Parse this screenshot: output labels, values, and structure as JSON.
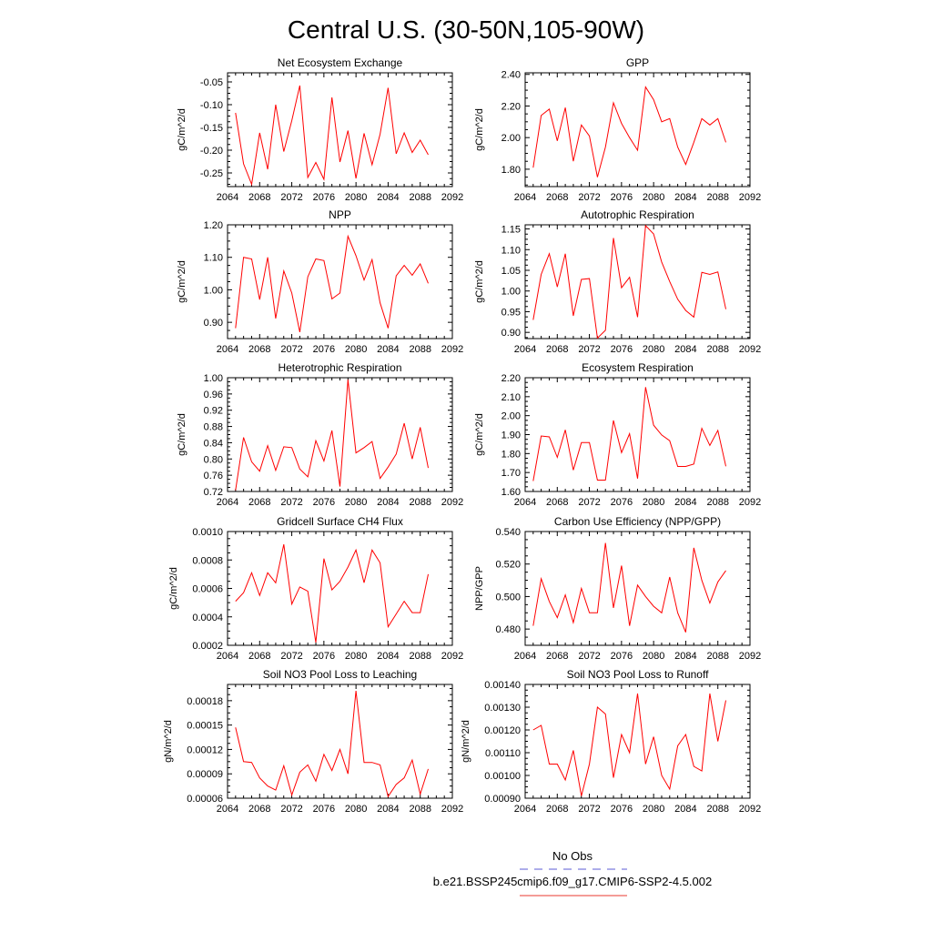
{
  "page_title": "Central U.S. (30-50N,105-90W)",
  "legend": {
    "entries": [
      {
        "label": "No Obs",
        "color": "#5b5bd6",
        "style": "dashed"
      },
      {
        "label": "b.e21.BSSP245cmip6.f09_g17.CMIP6-SSP2-4.5.002",
        "color": "#e8392f",
        "style": "solid"
      }
    ]
  },
  "chart_data": [
    {
      "type": "line",
      "title": "Net Ecosystem Exchange",
      "ylabel": "gC/m^2/d",
      "xlabel": "",
      "xlim": [
        2064,
        2092
      ],
      "xticks": [
        2064,
        2068,
        2072,
        2076,
        2080,
        2084,
        2088,
        2092
      ],
      "ylim": [
        -0.28,
        -0.03
      ],
      "yticks": [
        -0.25,
        -0.2,
        -0.15,
        -0.1,
        -0.05
      ],
      "ytick_labels": [
        "-0.25",
        "-0.20",
        "-0.15",
        "-0.10",
        "-0.05"
      ],
      "series": [
        {
          "color": "#ff0000",
          "x": [
            2065,
            2066,
            2067,
            2068,
            2069,
            2070,
            2071,
            2072,
            2073,
            2074,
            2075,
            2076,
            2077,
            2078,
            2079,
            2080,
            2081,
            2082,
            2083,
            2084,
            2085,
            2086,
            2087,
            2088,
            2089
          ],
          "values": [
            -0.118,
            -0.23,
            -0.275,
            -0.162,
            -0.242,
            -0.1,
            -0.203,
            -0.135,
            -0.058,
            -0.26,
            -0.227,
            -0.264,
            -0.084,
            -0.226,
            -0.157,
            -0.262,
            -0.163,
            -0.232,
            -0.165,
            -0.063,
            -0.208,
            -0.162,
            -0.205,
            -0.178,
            -0.21
          ]
        }
      ]
    },
    {
      "type": "line",
      "title": "GPP",
      "ylabel": "gC/m^2/d",
      "xlabel": "",
      "xlim": [
        2064,
        2092
      ],
      "xticks": [
        2064,
        2068,
        2072,
        2076,
        2080,
        2084,
        2088,
        2092
      ],
      "ylim": [
        1.69,
        2.41
      ],
      "yticks": [
        1.8,
        2.0,
        2.2,
        2.4
      ],
      "ytick_labels": [
        "1.80",
        "2.00",
        "2.20",
        "2.40"
      ],
      "series": [
        {
          "color": "#ff0000",
          "x": [
            2065,
            2066,
            2067,
            2068,
            2069,
            2070,
            2071,
            2072,
            2073,
            2074,
            2075,
            2076,
            2077,
            2078,
            2079,
            2080,
            2081,
            2082,
            2083,
            2084,
            2085,
            2086,
            2087,
            2088,
            2089
          ],
          "values": [
            1.81,
            2.14,
            2.18,
            1.98,
            2.19,
            1.85,
            2.08,
            2.01,
            1.75,
            1.94,
            2.22,
            2.09,
            2.0,
            1.92,
            2.32,
            2.24,
            2.1,
            2.12,
            1.94,
            1.83,
            1.97,
            2.12,
            2.08,
            2.12,
            1.97
          ]
        }
      ]
    },
    {
      "type": "line",
      "title": "NPP",
      "ylabel": "gC/m^2/d",
      "xlabel": "",
      "xlim": [
        2064,
        2092
      ],
      "xticks": [
        2064,
        2068,
        2072,
        2076,
        2080,
        2084,
        2088,
        2092
      ],
      "ylim": [
        0.85,
        1.2
      ],
      "yticks": [
        0.9,
        1.0,
        1.1,
        1.2
      ],
      "ytick_labels": [
        "0.90",
        "1.00",
        "1.10",
        "1.20"
      ],
      "series": [
        {
          "color": "#ff0000",
          "x": [
            2065,
            2066,
            2067,
            2068,
            2069,
            2070,
            2071,
            2072,
            2073,
            2074,
            2075,
            2076,
            2077,
            2078,
            2079,
            2080,
            2081,
            2082,
            2083,
            2084,
            2085,
            2086,
            2087,
            2088,
            2089
          ],
          "values": [
            0.882,
            1.1,
            1.095,
            0.97,
            1.1,
            0.912,
            1.058,
            0.99,
            0.87,
            1.04,
            1.095,
            1.09,
            0.972,
            0.99,
            1.165,
            1.105,
            1.03,
            1.093,
            0.96,
            0.882,
            1.043,
            1.075,
            1.045,
            1.08,
            1.02
          ]
        }
      ]
    },
    {
      "type": "line",
      "title": "Autotrophic Respiration",
      "ylabel": "gC/m^2/d",
      "xlabel": "",
      "xlim": [
        2064,
        2092
      ],
      "xticks": [
        2064,
        2068,
        2072,
        2076,
        2080,
        2084,
        2088,
        2092
      ],
      "ylim": [
        0.885,
        1.16
      ],
      "yticks": [
        0.9,
        0.95,
        1.0,
        1.05,
        1.1,
        1.15
      ],
      "ytick_labels": [
        "0.90",
        "0.95",
        "1.00",
        "1.05",
        "1.10",
        "1.15"
      ],
      "series": [
        {
          "color": "#ff0000",
          "x": [
            2065,
            2066,
            2067,
            2068,
            2069,
            2070,
            2071,
            2072,
            2073,
            2074,
            2075,
            2076,
            2077,
            2078,
            2079,
            2080,
            2081,
            2082,
            2083,
            2084,
            2085,
            2086,
            2087,
            2088,
            2089
          ],
          "values": [
            0.93,
            1.04,
            1.09,
            1.01,
            1.09,
            0.94,
            1.028,
            1.03,
            0.886,
            0.905,
            1.128,
            1.008,
            1.033,
            0.937,
            1.158,
            1.138,
            1.07,
            1.023,
            0.98,
            0.953,
            0.937,
            1.045,
            1.04,
            1.046,
            0.956
          ]
        }
      ]
    },
    {
      "type": "line",
      "title": "Heterotrophic Respiration",
      "ylabel": "gC/m^2/d",
      "xlabel": "",
      "xlim": [
        2064,
        2092
      ],
      "xticks": [
        2064,
        2068,
        2072,
        2076,
        2080,
        2084,
        2088,
        2092
      ],
      "ylim": [
        0.72,
        1.0
      ],
      "yticks": [
        0.72,
        0.76,
        0.8,
        0.84,
        0.88,
        0.92,
        0.96,
        1.0
      ],
      "ytick_labels": [
        "0.72",
        "0.76",
        "0.80",
        "0.84",
        "0.88",
        "0.92",
        "0.96",
        "1.00"
      ],
      "series": [
        {
          "color": "#ff0000",
          "x": [
            2065,
            2066,
            2067,
            2068,
            2069,
            2070,
            2071,
            2072,
            2073,
            2074,
            2075,
            2076,
            2077,
            2078,
            2079,
            2080,
            2081,
            2082,
            2083,
            2084,
            2085,
            2086,
            2087,
            2088,
            2089
          ],
          "values": [
            0.723,
            0.853,
            0.793,
            0.77,
            0.833,
            0.772,
            0.83,
            0.828,
            0.775,
            0.756,
            0.845,
            0.795,
            0.87,
            0.732,
            0.995,
            0.815,
            0.828,
            0.843,
            0.752,
            0.78,
            0.812,
            0.888,
            0.8,
            0.878,
            0.778
          ]
        }
      ]
    },
    {
      "type": "line",
      "title": "Ecosystem Respiration",
      "ylabel": "gC/m^2/d",
      "xlabel": "",
      "xlim": [
        2064,
        2092
      ],
      "xticks": [
        2064,
        2068,
        2072,
        2076,
        2080,
        2084,
        2088,
        2092
      ],
      "ylim": [
        1.6,
        2.2
      ],
      "yticks": [
        1.6,
        1.7,
        1.8,
        1.9,
        2.0,
        2.1,
        2.2
      ],
      "ytick_labels": [
        "1.60",
        "1.70",
        "1.80",
        "1.90",
        "2.00",
        "2.10",
        "2.20"
      ],
      "series": [
        {
          "color": "#ff0000",
          "x": [
            2065,
            2066,
            2067,
            2068,
            2069,
            2070,
            2071,
            2072,
            2073,
            2074,
            2075,
            2076,
            2077,
            2078,
            2079,
            2080,
            2081,
            2082,
            2083,
            2084,
            2085,
            2086,
            2087,
            2088,
            2089
          ],
          "values": [
            1.655,
            1.893,
            1.888,
            1.78,
            1.925,
            1.713,
            1.858,
            1.858,
            1.66,
            1.66,
            1.975,
            1.805,
            1.905,
            1.668,
            2.15,
            1.95,
            1.898,
            1.868,
            1.732,
            1.732,
            1.745,
            1.933,
            1.843,
            1.922,
            1.733
          ]
        }
      ]
    },
    {
      "type": "line",
      "title": "Gridcell Surface CH4 Flux",
      "ylabel": "gC/m^2/d",
      "xlabel": "",
      "xlim": [
        2064,
        2092
      ],
      "xticks": [
        2064,
        2068,
        2072,
        2076,
        2080,
        2084,
        2088,
        2092
      ],
      "ylim": [
        0.0002,
        0.001
      ],
      "yticks": [
        0.0002,
        0.0004,
        0.0006,
        0.0008,
        0.001
      ],
      "ytick_labels": [
        "0.0002",
        "0.0004",
        "0.0006",
        "0.0008",
        "0.0010"
      ],
      "series": [
        {
          "color": "#ff0000",
          "x": [
            2065,
            2066,
            2067,
            2068,
            2069,
            2070,
            2071,
            2072,
            2073,
            2074,
            2075,
            2076,
            2077,
            2078,
            2079,
            2080,
            2081,
            2082,
            2083,
            2084,
            2085,
            2086,
            2087,
            2088,
            2089
          ],
          "values": [
            0.00051,
            0.00057,
            0.00071,
            0.00055,
            0.00071,
            0.00064,
            0.00091,
            0.00049,
            0.00061,
            0.00058,
            0.00022,
            0.00081,
            0.00059,
            0.00065,
            0.00075,
            0.00087,
            0.00064,
            0.00087,
            0.00078,
            0.00033,
            0.00042,
            0.00051,
            0.00043,
            0.00043,
            0.0007
          ]
        }
      ]
    },
    {
      "type": "line",
      "title": "Carbon Use Efficiency (NPP/GPP)",
      "ylabel": "NPP/GPP",
      "xlabel": "",
      "xlim": [
        2064,
        2092
      ],
      "xticks": [
        2064,
        2068,
        2072,
        2076,
        2080,
        2084,
        2088,
        2092
      ],
      "ylim": [
        0.47,
        0.54
      ],
      "yticks": [
        0.48,
        0.5,
        0.52,
        0.54
      ],
      "ytick_labels": [
        "0.480",
        "0.500",
        "0.520",
        "0.540"
      ],
      "series": [
        {
          "color": "#ff0000",
          "x": [
            2065,
            2066,
            2067,
            2068,
            2069,
            2070,
            2071,
            2072,
            2073,
            2074,
            2075,
            2076,
            2077,
            2078,
            2079,
            2080,
            2081,
            2082,
            2083,
            2084,
            2085,
            2086,
            2087,
            2088,
            2089
          ],
          "values": [
            0.482,
            0.511,
            0.497,
            0.487,
            0.501,
            0.484,
            0.505,
            0.49,
            0.49,
            0.533,
            0.493,
            0.519,
            0.482,
            0.507,
            0.5,
            0.494,
            0.49,
            0.512,
            0.49,
            0.478,
            0.53,
            0.51,
            0.496,
            0.509,
            0.516
          ]
        }
      ]
    },
    {
      "type": "line",
      "title": "Soil NO3 Pool Loss to Leaching",
      "ylabel": "gN/m^2/d",
      "xlabel": "",
      "xlim": [
        2064,
        2092
      ],
      "xticks": [
        2064,
        2068,
        2072,
        2076,
        2080,
        2084,
        2088,
        2092
      ],
      "ylim": [
        6e-05,
        0.0002
      ],
      "yticks": [
        6e-05,
        9e-05,
        0.00012,
        0.00015,
        0.00018
      ],
      "ytick_labels": [
        "0.00006",
        "0.00009",
        "0.00012",
        "0.00015",
        "0.00018"
      ],
      "series": [
        {
          "color": "#ff0000",
          "x": [
            2065,
            2066,
            2067,
            2068,
            2069,
            2070,
            2071,
            2072,
            2073,
            2074,
            2075,
            2076,
            2077,
            2078,
            2079,
            2080,
            2081,
            2082,
            2083,
            2084,
            2085,
            2086,
            2087,
            2088,
            2089
          ],
          "values": [
            0.000147,
            0.000105,
            0.000104,
            8.5e-05,
            7.5e-05,
            7e-05,
            0.0001,
            6.4e-05,
            9.2e-05,
            0.000101,
            8.1e-05,
            0.000114,
            9.4e-05,
            0.00012,
            9e-05,
            0.000192,
            0.000104,
            0.000104,
            0.000101,
            6.2e-05,
            7.7e-05,
            8.5e-05,
            0.000107,
            6.5e-05,
            9.6e-05
          ]
        }
      ]
    },
    {
      "type": "line",
      "title": "Soil NO3 Pool Loss to Runoff",
      "ylabel": "gN/m^2/d",
      "xlabel": "",
      "xlim": [
        2064,
        2092
      ],
      "xticks": [
        2064,
        2068,
        2072,
        2076,
        2080,
        2084,
        2088,
        2092
      ],
      "ylim": [
        0.0009,
        0.0014
      ],
      "yticks": [
        0.0009,
        0.001,
        0.0011,
        0.0012,
        0.0013,
        0.0014
      ],
      "ytick_labels": [
        "0.00090",
        "0.00100",
        "0.00110",
        "0.00120",
        "0.00130",
        "0.00140"
      ],
      "series": [
        {
          "color": "#ff0000",
          "x": [
            2065,
            2066,
            2067,
            2068,
            2069,
            2070,
            2071,
            2072,
            2073,
            2074,
            2075,
            2076,
            2077,
            2078,
            2079,
            2080,
            2081,
            2082,
            2083,
            2084,
            2085,
            2086,
            2087,
            2088,
            2089
          ],
          "values": [
            0.0012,
            0.00122,
            0.00105,
            0.00105,
            0.00098,
            0.00111,
            0.00091,
            0.00105,
            0.0013,
            0.00127,
            0.00099,
            0.00118,
            0.0011,
            0.00136,
            0.00105,
            0.00117,
            0.001,
            0.00094,
            0.00113,
            0.00118,
            0.00104,
            0.00102,
            0.00136,
            0.00115,
            0.00133
          ]
        }
      ]
    }
  ]
}
